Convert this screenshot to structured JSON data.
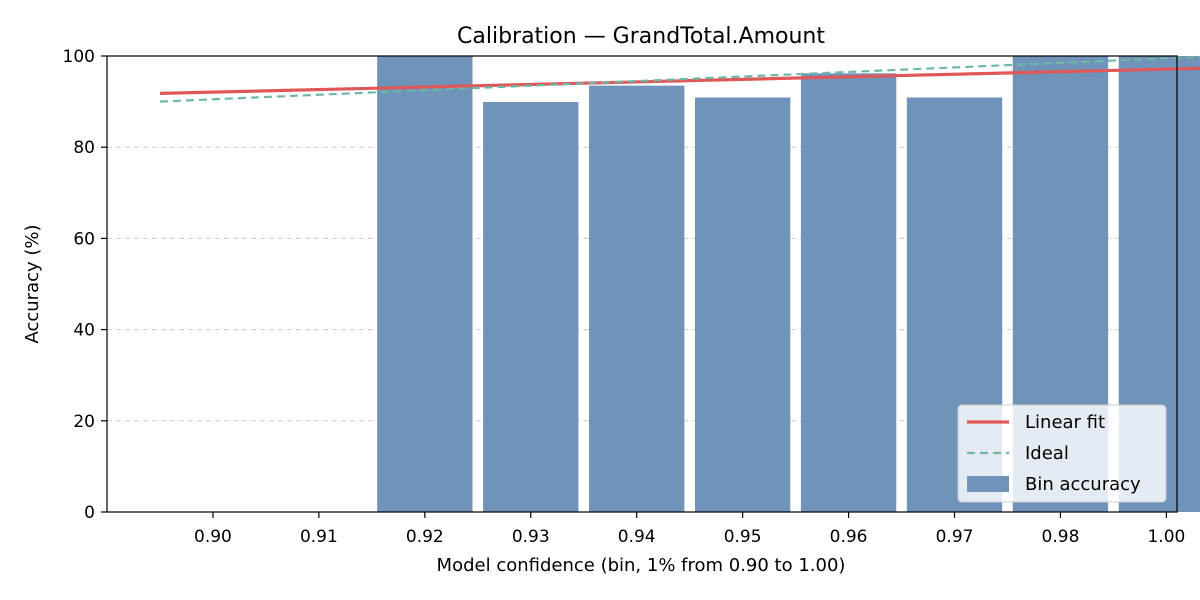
{
  "chart_data": {
    "type": "bar",
    "title": "Calibration — GrandTotal.Amount",
    "xlabel": "Model confidence (bin, 1% from 0.90 to 1.00)",
    "ylabel": "Accuracy (%)",
    "ylim": [
      0,
      100
    ],
    "yticks": [
      "0",
      "20",
      "40",
      "60",
      "80",
      "100"
    ],
    "categories": [
      "0.90",
      "0.91",
      "0.92",
      "0.93",
      "0.94",
      "0.95",
      "0.96",
      "0.97",
      "0.98",
      "1.00"
    ],
    "series": [
      {
        "name": "Bin accuracy",
        "kind": "bar",
        "color": "#6f93b9",
        "values": [
          null,
          null,
          100,
          89.9,
          93.5,
          90.9,
          96.2,
          90.9,
          100,
          100
        ]
      },
      {
        "name": "Linear fit",
        "kind": "line",
        "color": "#e05757",
        "style": "solid",
        "start": 91.8,
        "end": 97.4
      },
      {
        "name": "Ideal",
        "kind": "line",
        "color": "#6fb7a8",
        "style": "dashed",
        "start": 90,
        "end": 100
      }
    ],
    "grid": "horizontal dashed",
    "legend": "bottom-right"
  }
}
